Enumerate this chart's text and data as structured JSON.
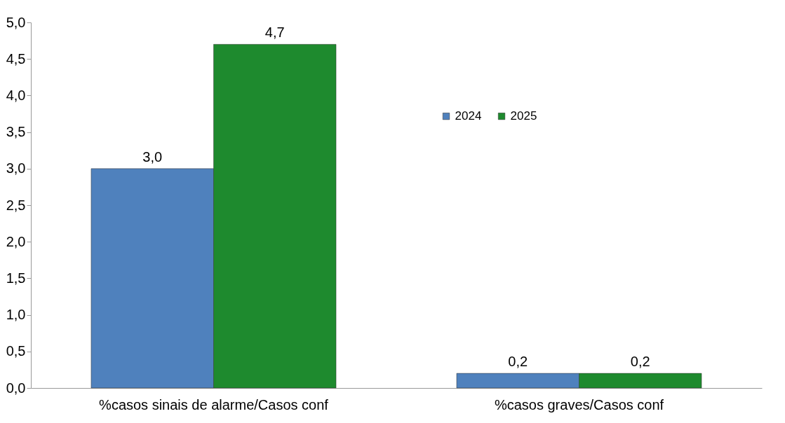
{
  "chart_data": {
    "type": "bar",
    "categories": [
      "%casos sinais de alarme/Casos conf",
      "%casos graves/Casos conf"
    ],
    "series": [
      {
        "name": "2024",
        "color": "#4f81bd",
        "values": [
          3.0,
          0.2
        ],
        "value_labels": [
          "3,0",
          "0,2"
        ]
      },
      {
        "name": "2025",
        "color": "#1e8a2e",
        "values": [
          4.7,
          0.2
        ],
        "value_labels": [
          "4,7",
          "0,2"
        ]
      }
    ],
    "ylim": [
      0,
      5
    ],
    "yticks": [
      {
        "value": 0,
        "label": "0,0"
      },
      {
        "value": 0.5,
        "label": "0,5"
      },
      {
        "value": 1,
        "label": "1,0"
      },
      {
        "value": 1.5,
        "label": "1,5"
      },
      {
        "value": 2,
        "label": "2,0"
      },
      {
        "value": 2.5,
        "label": "2,5"
      },
      {
        "value": 3,
        "label": "3,0"
      },
      {
        "value": 3.5,
        "label": "3,5"
      },
      {
        "value": 4,
        "label": "4,0"
      },
      {
        "value": 4.5,
        "label": "4,5"
      },
      {
        "value": 5,
        "label": "5,0"
      }
    ],
    "grid": false,
    "legend": "top right"
  }
}
